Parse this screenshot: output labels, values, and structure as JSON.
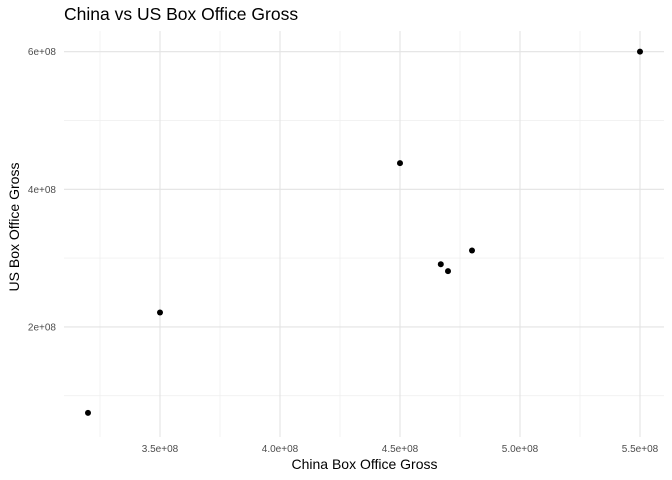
{
  "chart_data": {
    "type": "scatter",
    "title": "China vs US Box Office Gross",
    "xlabel": "China Box Office Gross",
    "ylabel": "US Box Office Gross",
    "xlim": [
      310000000.0,
      560000000.0
    ],
    "ylim": [
      40000000.0,
      630000000.0
    ],
    "x_ticks": [
      350000000.0,
      400000000.0,
      450000000.0,
      500000000.0,
      550000000.0
    ],
    "x_tick_labels": [
      "3.5e+08",
      "4.0e+08",
      "4.5e+08",
      "5.0e+08",
      "5.5e+08"
    ],
    "x_minor_ticks": [
      325000000.0,
      375000000.0,
      425000000.0,
      475000000.0,
      525000000.0
    ],
    "y_ticks": [
      200000000.0,
      400000000.0,
      600000000.0
    ],
    "y_tick_labels": [
      "2e+08",
      "4e+08",
      "6e+08"
    ],
    "y_minor_ticks": [
      100000000.0,
      300000000.0,
      500000000.0
    ],
    "grid": true,
    "legend": "none",
    "point_color": "#000000",
    "points": [
      {
        "x": 320000000.0,
        "y": 75000000.0
      },
      {
        "x": 350000000.0,
        "y": 221000000.0
      },
      {
        "x": 450000000.0,
        "y": 438000000.0
      },
      {
        "x": 467000000.0,
        "y": 291000000.0
      },
      {
        "x": 470000000.0,
        "y": 281000000.0
      },
      {
        "x": 480000000.0,
        "y": 311000000.0
      },
      {
        "x": 550000000.0,
        "y": 600000000.0
      }
    ]
  }
}
